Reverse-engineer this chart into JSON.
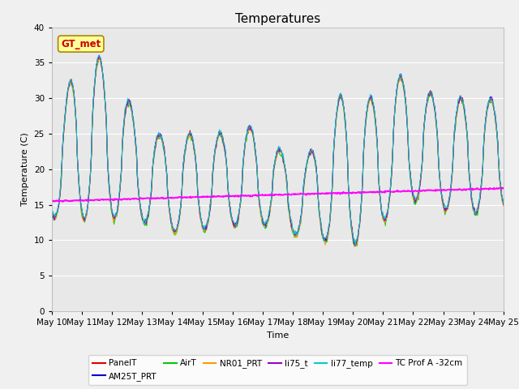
{
  "title": "Temperatures",
  "xlabel": "Time",
  "ylabel": "Temperature (C)",
  "ylim": [
    0,
    40
  ],
  "yticks": [
    0,
    5,
    10,
    15,
    20,
    25,
    30,
    35,
    40
  ],
  "x_tick_labels": [
    "May 10",
    "May 11",
    "May 12",
    "May 13",
    "May 14",
    "May 15",
    "May 16",
    "May 17",
    "May 18",
    "May 19",
    "May 20",
    "May 21",
    "May 22",
    "May 23",
    "May 24",
    "May 25"
  ],
  "series_colors": {
    "PanelT": "#dd0000",
    "AM25T_PRT": "#0000cc",
    "AirT": "#00cc00",
    "NR01_PRT": "#ff9900",
    "li75_t": "#9900cc",
    "li77_temp": "#00cccc",
    "TC_Prof_A": "#ff00ff"
  },
  "gt_met_box_color": "#ffff99",
  "gt_met_text_color": "#cc0000",
  "gt_met_border_color": "#aa8800",
  "background_color": "#e8e8e8",
  "fig_background": "#f0f0f0",
  "title_fontsize": 11,
  "axis_fontsize": 8,
  "tick_fontsize": 7.5
}
